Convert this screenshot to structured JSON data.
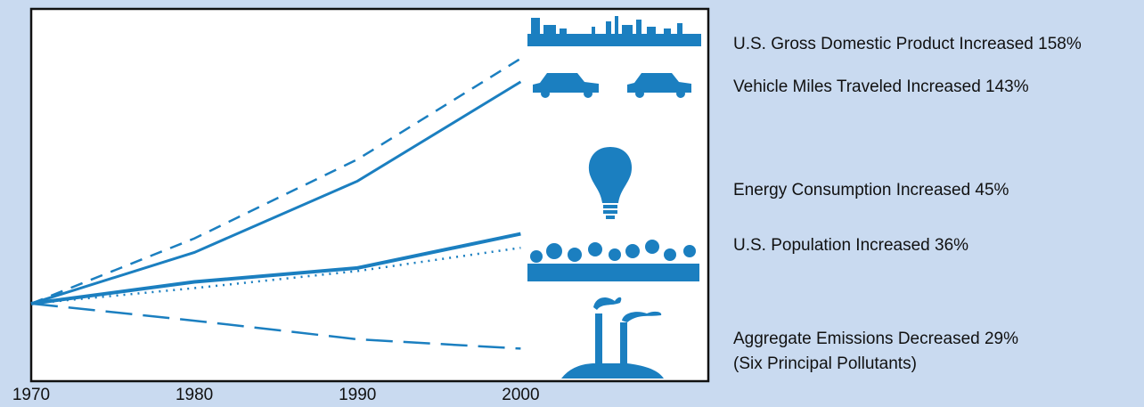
{
  "chart_data": {
    "type": "line",
    "x": [
      1970,
      1980,
      1990,
      2000
    ],
    "xlim": [
      1970,
      2011.5
    ],
    "xticks": [
      1970,
      1980,
      1990,
      2000
    ],
    "ylim": [
      -50,
      190
    ],
    "color": "#1b7fc0",
    "series": [
      {
        "name": "U.S. Gross Domestic Product Increased 158%",
        "style": "dashed",
        "values": [
          0,
          42,
          93,
          158
        ]
      },
      {
        "name": "Vehicle Miles Traveled Increased 143%",
        "style": "solid",
        "values": [
          0,
          33,
          79,
          143
        ]
      },
      {
        "name": "Energy Consumption Increased 45%",
        "style": "bold",
        "values": [
          0,
          14,
          23,
          45
        ]
      },
      {
        "name": "U.S. Population Increased 36%",
        "style": "dotted",
        "values": [
          0,
          10,
          21,
          36
        ]
      },
      {
        "name": "Aggregate Emissions Decreased 29%",
        "note": "(Six Principal Pollutants)",
        "style": "long-dashed",
        "values": [
          0,
          -11,
          -23,
          -29
        ]
      }
    ]
  }
}
